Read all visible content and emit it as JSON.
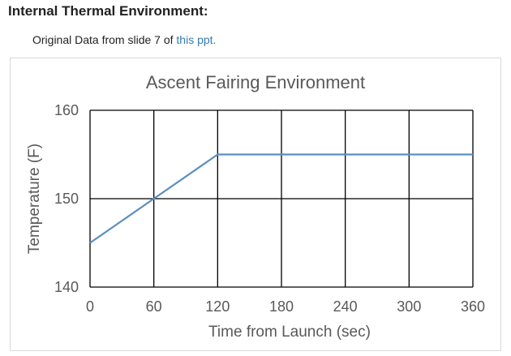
{
  "page": {
    "heading": "Internal Thermal Environment:",
    "note_prefix": "Original Data from slide 7 of ",
    "note_link": "this ppt.",
    "link_color": "#337ab7"
  },
  "chart_data": {
    "type": "line",
    "title": "Ascent Fairing Environment",
    "xlabel": "Time from Launch (sec)",
    "ylabel": "Temperature (F)",
    "xlim": [
      0,
      360
    ],
    "ylim": [
      140,
      160
    ],
    "xticks": [
      0,
      60,
      120,
      180,
      240,
      300,
      360
    ],
    "yticks": [
      140,
      150,
      160
    ],
    "grid": true,
    "legend": "none",
    "line_color": "#5b8ec2",
    "series": [
      {
        "x": [
          0,
          60,
          120,
          180,
          240,
          300,
          360
        ],
        "y": [
          145,
          150,
          155,
          155,
          155,
          155,
          155
        ]
      }
    ]
  }
}
